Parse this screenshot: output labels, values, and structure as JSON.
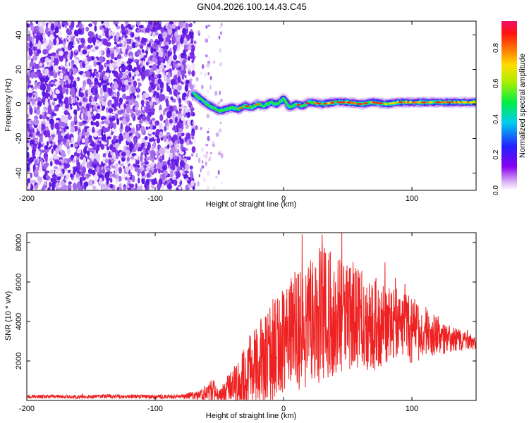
{
  "figure_title": "GN04.2026.100.14.43.C45",
  "colors": {
    "signal_line": "#ee2222",
    "axis": "#000000",
    "scatter_purple": "#7722ee"
  },
  "chart_data": [
    {
      "id": "spectrogram",
      "type": "heatmap",
      "title": "GN04.2026.100.14.43.C45",
      "xlabel": "Height of straight line (km)",
      "ylabel": "Frequency (Hz)",
      "xlim": [
        -200,
        150
      ],
      "ylim": [
        -50,
        48
      ],
      "x_ticks": [
        -200,
        -100,
        0,
        100
      ],
      "y_ticks": [
        -40,
        -20,
        0,
        20,
        40
      ],
      "colorbar": {
        "label": "Normalized spectral amplitude",
        "range": [
          0,
          0.95
        ],
        "ticks": [
          0.0,
          0.2,
          0.4,
          0.6,
          0.8
        ],
        "colormap": "rainbow (white-purple-blue-cyan-green-yellow-red-magenta)"
      },
      "features": {
        "noise_region_x": [
          -200,
          -70
        ],
        "noise_tail_x": [
          -70,
          -48
        ],
        "carrier_track": {
          "x": [
            -70,
            -65,
            -60,
            -55,
            -50,
            -45,
            -40,
            -35,
            -30,
            -25,
            -20,
            -15,
            -10,
            -5,
            0,
            5,
            10,
            15,
            20,
            30,
            40,
            50,
            60,
            70,
            80,
            90,
            100,
            110,
            120,
            130,
            140,
            150
          ],
          "freq_hz": [
            6,
            3,
            0,
            -2,
            -4,
            -3,
            -2,
            -3,
            -1,
            -2,
            0,
            -1,
            1,
            0,
            3,
            -2,
            0,
            -1,
            1,
            0,
            1,
            1,
            0,
            1,
            0,
            1,
            1,
            1,
            1,
            1,
            1,
            1
          ]
        }
      }
    },
    {
      "id": "snr",
      "type": "line",
      "xlabel": "Height of straight line (km)",
      "ylabel": "SNR (10 * v/v)",
      "xlim": [
        -200,
        150
      ],
      "ylim": [
        0,
        8500
      ],
      "x_ticks": [
        -200,
        -100,
        0,
        100
      ],
      "y_ticks": [
        2000,
        4000,
        6000,
        8000
      ],
      "series": [
        {
          "name": "SNR",
          "color": "#ee2222",
          "envelope_x": [
            -200,
            -180,
            -160,
            -140,
            -120,
            -100,
            -80,
            -65,
            -55,
            -50,
            -45,
            -40,
            -35,
            -30,
            -25,
            -20,
            -15,
            -10,
            -5,
            0,
            5,
            10,
            15,
            20,
            25,
            30,
            35,
            40,
            50,
            60,
            70,
            80,
            90,
            100,
            110,
            120,
            130,
            140,
            150
          ],
          "envelope_mean": [
            200,
            200,
            180,
            200,
            200,
            190,
            200,
            250,
            500,
            300,
            500,
            700,
            900,
            1200,
            1500,
            1900,
            2100,
            2400,
            2700,
            3000,
            3300,
            3600,
            3900,
            4100,
            4300,
            4400,
            4400,
            4300,
            4200,
            4000,
            3900,
            3800,
            3700,
            3600,
            3500,
            3300,
            3100,
            3000,
            2900
          ],
          "envelope_amp": [
            100,
            100,
            100,
            100,
            100,
            100,
            120,
            250,
            600,
            300,
            700,
            900,
            1300,
            1700,
            2000,
            2200,
            2300,
            2500,
            2700,
            2800,
            3000,
            3100,
            3300,
            3400,
            3500,
            3600,
            3500,
            3300,
            2900,
            2600,
            2400,
            2200,
            1900,
            1700,
            1400,
            1100,
            700,
            500,
            300
          ],
          "peak_value": 8400,
          "peak_x": 30
        }
      ]
    }
  ]
}
